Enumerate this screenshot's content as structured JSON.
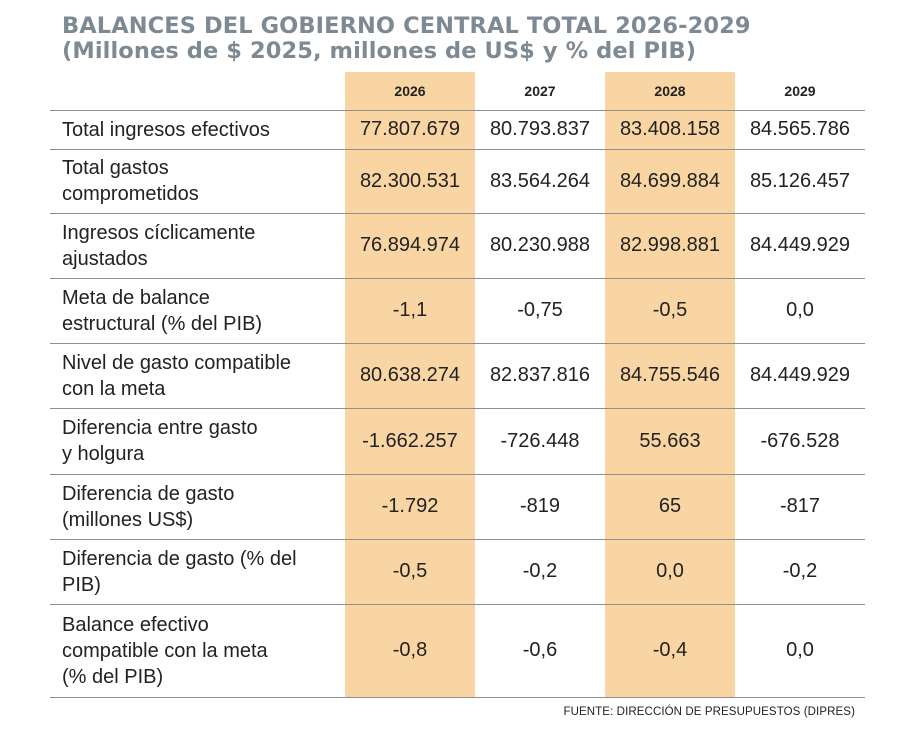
{
  "title": {
    "line1": "BALANCES DEL GOBIERNO CENTRAL TOTAL 2026-2029",
    "line2": "(Millones de $ 2025, millones de US$ y % del PIB)"
  },
  "source": "FUENTE: DIRECCIÓN DE PRESUPUESTOS (DIPRES)",
  "colors": {
    "highlight": "#f9d5a4",
    "title": "#7d8a93",
    "rule": "#8f8f8f"
  },
  "chart_data": {
    "type": "table",
    "columns": [
      "2026",
      "2027",
      "2028",
      "2029"
    ],
    "highlighted_columns": [
      "2026",
      "2028"
    ],
    "rows": [
      {
        "label": [
          "Total ingresos efectivos"
        ],
        "values": [
          "77.807.679",
          "80.793.837",
          "83.408.158",
          "84.565.786"
        ]
      },
      {
        "label": [
          "Total gastos",
          "comprometidos"
        ],
        "values": [
          "82.300.531",
          "83.564.264",
          "84.699.884",
          "85.126.457"
        ]
      },
      {
        "label": [
          "Ingresos cíclicamente",
          "ajustados"
        ],
        "values": [
          "76.894.974",
          "80.230.988",
          "82.998.881",
          "84.449.929"
        ]
      },
      {
        "label": [
          "Meta de balance",
          "estructural (% del PIB)"
        ],
        "values": [
          "-1,1",
          "-0,75",
          "-0,5",
          "0,0"
        ]
      },
      {
        "label": [
          "Nivel de gasto compatible",
          "con la meta"
        ],
        "values": [
          "80.638.274",
          "82.837.816",
          "84.755.546",
          "84.449.929"
        ]
      },
      {
        "label": [
          "Diferencia entre gasto",
          "y holgura"
        ],
        "values": [
          "-1.662.257",
          "-726.448",
          "55.663",
          "-676.528"
        ]
      },
      {
        "label": [
          "Diferencia de gasto",
          "(millones US$)"
        ],
        "values": [
          "-1.792",
          "-819",
          "65",
          "-817"
        ]
      },
      {
        "label": [
          "Diferencia de gasto (% del",
          "PIB)"
        ],
        "values": [
          "-0,5",
          "-0,2",
          "0,0",
          "-0,2"
        ]
      },
      {
        "label": [
          "Balance efectivo",
          "compatible con la meta",
          "(% del PIB)"
        ],
        "values": [
          "-0,8",
          "-0,6",
          "-0,4",
          "0,0"
        ]
      }
    ]
  }
}
